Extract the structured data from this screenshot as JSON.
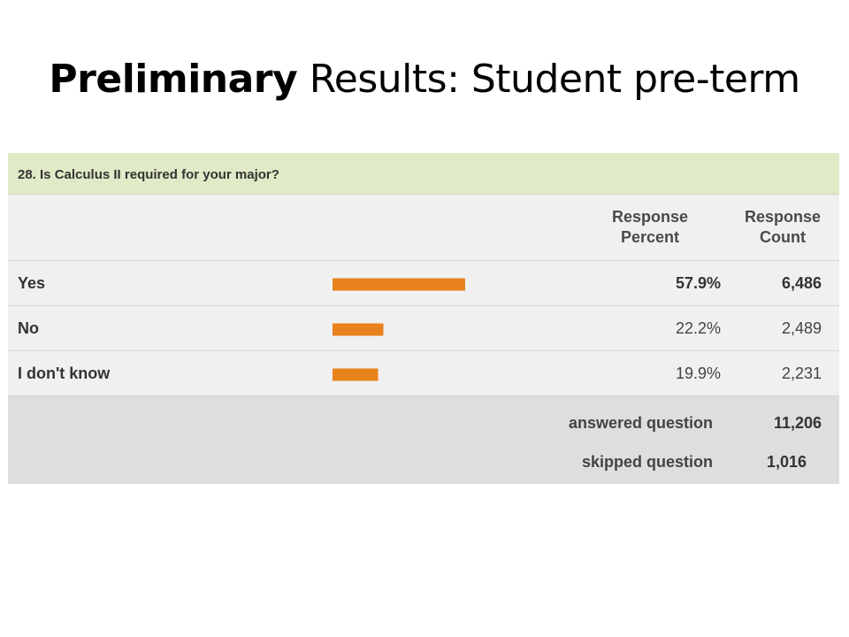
{
  "slide": {
    "title_bold": "Preliminary",
    "title_rest": "Results: Student pre-term"
  },
  "survey": {
    "question": "28. Is Calculus II required for your major?",
    "col_percent_line1": "Response",
    "col_percent_line2": "Percent",
    "col_count_line1": "Response",
    "col_count_line2": "Count",
    "answered_label": "answered question",
    "answered_value": "11,206",
    "skipped_label": "skipped question",
    "skipped_value": "1,016",
    "bar_color": "#e8821c"
  },
  "chart_data": {
    "type": "bar",
    "orientation": "horizontal",
    "categories": [
      "Yes",
      "No",
      "I don't know"
    ],
    "values": [
      57.9,
      22.2,
      19.9
    ],
    "percent_labels": [
      "57.9%",
      "22.2%",
      "19.9%"
    ],
    "counts": [
      "6,486",
      "2,489",
      "2,231"
    ],
    "xlim": [
      0,
      100
    ]
  }
}
